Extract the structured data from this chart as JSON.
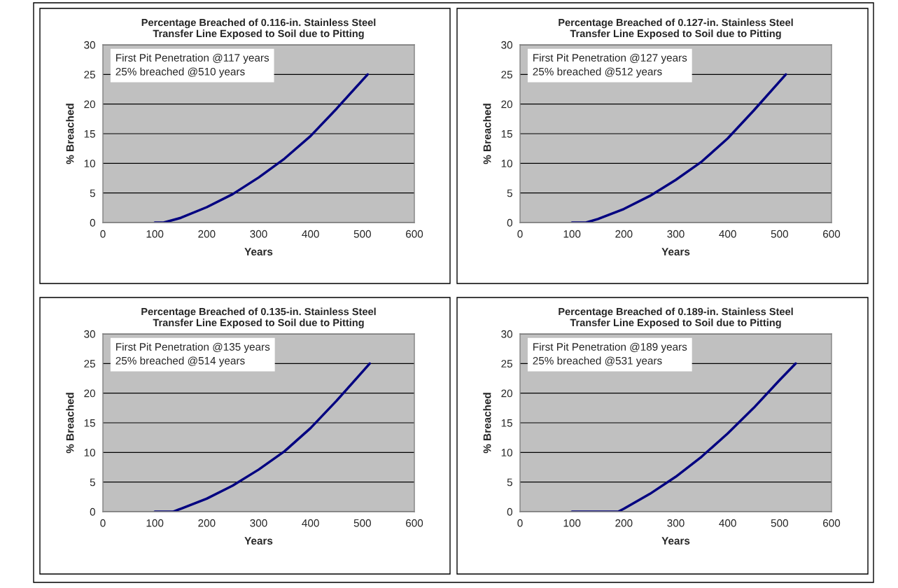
{
  "chart_data": [
    {
      "type": "line",
      "title": "Percentage Breached of 0.116-in. Stainless Steel\nTransfer Line Exposed to Soil due to Pitting",
      "xlabel": "Years",
      "ylabel": "% Breached",
      "x": [
        100,
        117,
        150,
        200,
        250,
        300,
        350,
        400,
        450,
        510
      ],
      "series": [
        {
          "color": "#000080",
          "values": [
            0,
            0,
            0.8,
            2.6,
            4.8,
            7.6,
            10.8,
            14.6,
            19.2,
            25
          ]
        }
      ],
      "xlim": [
        0,
        600
      ],
      "xticks": [
        0,
        100,
        200,
        300,
        400,
        500,
        600
      ],
      "ylim": [
        0,
        30
      ],
      "yticks": [
        0,
        5,
        10,
        15,
        20,
        25,
        30
      ],
      "grid": "y",
      "annotations": [
        "First Pit Penetration @117 years",
        "25% breached @510 years"
      ]
    },
    {
      "type": "line",
      "title": "Percentage Breached of 0.127-in. Stainless Steel\nTransfer Line Exposed to Soil due to Pitting",
      "xlabel": "Years",
      "ylabel": "% Breached",
      "x": [
        100,
        127,
        150,
        200,
        250,
        300,
        350,
        400,
        450,
        512
      ],
      "series": [
        {
          "color": "#000080",
          "values": [
            0,
            0,
            0.6,
            2.3,
            4.5,
            7.2,
            10.3,
            14.2,
            18.9,
            25
          ]
        }
      ],
      "xlim": [
        0,
        600
      ],
      "xticks": [
        0,
        100,
        200,
        300,
        400,
        500,
        600
      ],
      "ylim": [
        0,
        30
      ],
      "yticks": [
        0,
        5,
        10,
        15,
        20,
        25,
        30
      ],
      "grid": "y",
      "annotations": [
        "First Pit Penetration @127 years",
        "25% breached @512 years"
      ]
    },
    {
      "type": "line",
      "title": "Percentage Breached of 0.135-in. Stainless Steel\nTransfer Line Exposed to Soil due to Pitting",
      "xlabel": "Years",
      "ylabel": "% Breached",
      "x": [
        100,
        135,
        150,
        200,
        250,
        300,
        350,
        400,
        450,
        514
      ],
      "series": [
        {
          "color": "#000080",
          "values": [
            0,
            0,
            0.5,
            2.2,
            4.4,
            7.1,
            10.2,
            14.1,
            18.7,
            25
          ]
        }
      ],
      "xlim": [
        0,
        600
      ],
      "xticks": [
        0,
        100,
        200,
        300,
        400,
        500,
        600
      ],
      "ylim": [
        0,
        30
      ],
      "yticks": [
        0,
        5,
        10,
        15,
        20,
        25,
        30
      ],
      "grid": "y",
      "annotations": [
        "First Pit Penetration @135 years",
        "25% breached @514 years"
      ]
    },
    {
      "type": "line",
      "title": "Percentage Breached of 0.189-in. Stainless Steel\nTransfer Line Exposed to Soil due to Pitting",
      "xlabel": "Years",
      "ylabel": "% Breached",
      "x": [
        100,
        189,
        200,
        250,
        300,
        350,
        400,
        450,
        500,
        531
      ],
      "series": [
        {
          "color": "#000080",
          "values": [
            0,
            0,
            0.5,
            3.0,
            5.9,
            9.3,
            13.2,
            17.5,
            22.2,
            25
          ]
        }
      ],
      "xlim": [
        0,
        600
      ],
      "xticks": [
        0,
        100,
        200,
        300,
        400,
        500,
        600
      ],
      "ylim": [
        0,
        30
      ],
      "yticks": [
        0,
        5,
        10,
        15,
        20,
        25,
        30
      ],
      "grid": "y",
      "annotations": [
        "First Pit Penetration @189 years",
        "25% breached @531 years"
      ]
    }
  ]
}
